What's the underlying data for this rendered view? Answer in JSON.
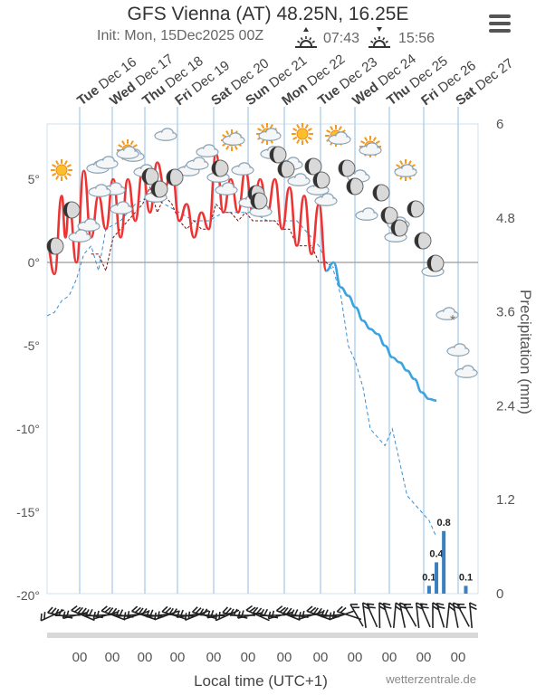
{
  "header": {
    "title": "GFS Vienna (AT) 48.25N, 16.25E",
    "init_prefix": "Init: Mon, 15Dec2025 00Z",
    "sunrise": "07:43",
    "sunset": "15:56"
  },
  "footer": {
    "xlabel": "Local time (UTC+1)",
    "credit": "wetterzentrale.de"
  },
  "chart_data": {
    "type": "line",
    "title": "GFS Vienna (AT) 48.25N, 16.25E",
    "xlabel": "Local time (UTC+1)",
    "ylabel_left": "",
    "ylabel_right": "Precipitation (mm)",
    "ylim_left": [
      -20,
      8
    ],
    "ylim_right": [
      0,
      6
    ],
    "left_ticks": [
      "5°",
      "0°",
      "-5°",
      "-10°",
      "-15°",
      "-20°"
    ],
    "left_tick_values": [
      5,
      0,
      -5,
      -10,
      -15,
      -20
    ],
    "right_ticks": [
      "6",
      "4.8",
      "3.6",
      "2.4",
      "1.2",
      "0"
    ],
    "right_tick_values": [
      6,
      4.8,
      3.6,
      2.4,
      1.2,
      0
    ],
    "x_midnight_labels": [
      "00",
      "00",
      "00",
      "00",
      "00",
      "00",
      "00",
      "00",
      "00",
      "00",
      "00",
      "00",
      "00"
    ],
    "day_labels": [
      {
        "day": "Tue",
        "date": "Dec 16"
      },
      {
        "day": "Wed",
        "date": "Dec 17"
      },
      {
        "day": "Thu",
        "date": "Dec 18"
      },
      {
        "day": "Fri",
        "date": "Dec 19"
      },
      {
        "day": "Sat",
        "date": "Dec 20"
      },
      {
        "day": "Sun",
        "date": "Dec 21"
      },
      {
        "day": "Mon",
        "date": "Dec 22"
      },
      {
        "day": "Tue",
        "date": "Dec 23"
      },
      {
        "day": "Wed",
        "date": "Dec 24"
      },
      {
        "day": "Thu",
        "date": "Dec 25"
      },
      {
        "day": "Fri",
        "date": "Dec 26"
      },
      {
        "day": "Sat",
        "date": "Dec 27"
      }
    ],
    "series": [
      {
        "name": "Temperature",
        "color": "#e33",
        "below_zero_color": "#3aa3e0",
        "x_hours": [
          0,
          6,
          12,
          15,
          18,
          24,
          30,
          36,
          42,
          48,
          54,
          60,
          66,
          72,
          78,
          84,
          90,
          96,
          102,
          108,
          114,
          120,
          126,
          132,
          138,
          144,
          150,
          156,
          162,
          168,
          174,
          180,
          186,
          192,
          198,
          204,
          210,
          216,
          222,
          228,
          234,
          240,
          246,
          252,
          258,
          264,
          270,
          276,
          282,
          288,
          294,
          300,
          306,
          312,
          318
        ],
        "values": [
          1,
          -0.7,
          4,
          1.5,
          3.5,
          0,
          5.5,
          1.5,
          4,
          2,
          5,
          1.5,
          5,
          2.5,
          5.5,
          3,
          6,
          4.5,
          5.5,
          2.5,
          3.5,
          1.5,
          3,
          2,
          6.5,
          3,
          5,
          3,
          5.5,
          3,
          5,
          3,
          5,
          2,
          4.5,
          1,
          4,
          0.5,
          3.5,
          -0.5,
          0,
          -1.5,
          -2,
          -2.7,
          -3.5,
          -4,
          -4.3,
          -5,
          -5.7,
          -6,
          -6.5,
          -7,
          -7.8,
          -8.2,
          -8.3
        ]
      },
      {
        "name": "Dew point",
        "color": "#7a1010",
        "x_hours": [
          36,
          42,
          48,
          54,
          60,
          66,
          72,
          78,
          84,
          90,
          96,
          102,
          108,
          114,
          120,
          126,
          132,
          138,
          144,
          150,
          156,
          162,
          168,
          174,
          180,
          186,
          192,
          198,
          204,
          210,
          216,
          222,
          228,
          234
        ],
        "values": [
          0.5,
          0.5,
          -0.5,
          1.5,
          2,
          2.5,
          3,
          3.5,
          4.5,
          3,
          4,
          3.5,
          2.5,
          2,
          2.5,
          2,
          2,
          3.5,
          3,
          3,
          2.5,
          3,
          2.5,
          2.5,
          2.5,
          2.5,
          2,
          2,
          1,
          1,
          1,
          0,
          0,
          -0.3
        ]
      },
      {
        "name": "Temperature 850 hPa",
        "color": "#3a8fd0",
        "x_hours": [
          0,
          6,
          12,
          18,
          24,
          30,
          36,
          42,
          48,
          60,
          72,
          84,
          96,
          108,
          120,
          132,
          144,
          156,
          168,
          180,
          192,
          204,
          216,
          222,
          228,
          234,
          240,
          246,
          252,
          258,
          264,
          270,
          276,
          282,
          288,
          294,
          300,
          306,
          312,
          318
        ],
        "values": [
          -3.2,
          -3,
          -2.3,
          -2,
          -1,
          0.5,
          1,
          -0.5,
          2,
          2.5,
          3.5,
          4,
          3.5,
          3,
          2.5,
          2.5,
          3,
          3,
          3,
          2.5,
          2.5,
          2.5,
          1.5,
          1,
          0,
          -0.5,
          -2,
          -5,
          -6,
          -7.5,
          -10,
          -10.5,
          -11,
          -10,
          -12,
          -14,
          -14.5,
          -15,
          -15.5,
          -16.5
        ]
      }
    ],
    "precipitation": [
      {
        "x_hours": 312,
        "value": 0.1,
        "label": "0.1"
      },
      {
        "x_hours": 318,
        "value": 0.4,
        "label": "0.4"
      },
      {
        "x_hours": 324,
        "value": 0.8,
        "label": "0.8"
      },
      {
        "x_hours": 342,
        "value": 0.1,
        "label": "0.1"
      }
    ],
    "grid": true,
    "legend": "none"
  },
  "colors": {
    "temperature": "#e33",
    "temperature_negative": "#3aa3e0",
    "dewpoint": "#7a1010",
    "t850": "#3a8fd0",
    "precip_bar": "#3a7fbf",
    "day_line": "#b6d4ec",
    "zero_line": "#999"
  }
}
